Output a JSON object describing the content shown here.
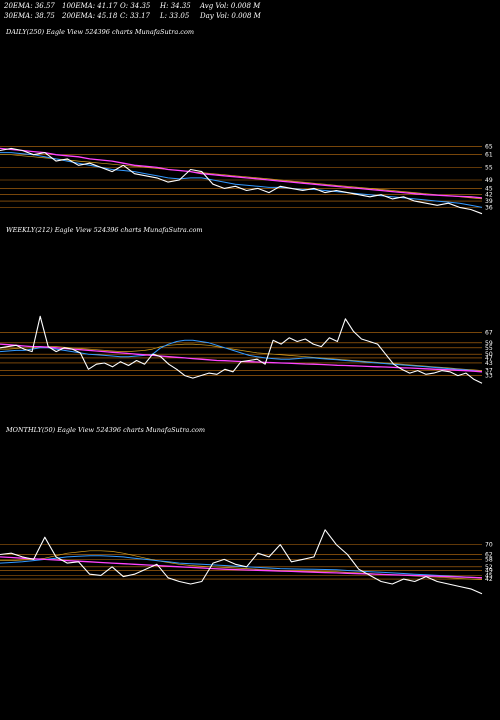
{
  "header": {
    "row1": [
      "20EMA: 36.57",
      "100EMA: 41.17",
      "O: 34.35",
      "H: 34.35",
      "Avg Vol: 0.008 M"
    ],
    "row2": [
      "30EMA: 38.75",
      "200EMA: 45.18",
      "C: 33.17",
      "L: 33.05",
      "Day Vol: 0.008 M"
    ]
  },
  "colors": {
    "background": "#000000",
    "price": "#ffffff",
    "ema_pink": "#ff44ff",
    "ema_blue": "#3399ff",
    "ema_gold": "#d4a020",
    "grid": "#c07010"
  },
  "chart_data": [
    {
      "type": "line",
      "title": "DAILY(250) Eagle  View  524396  charts MunafaSutra.com",
      "yticks": [
        65,
        61,
        55,
        49,
        45,
        42,
        39,
        36
      ],
      "ylim": [
        30,
        68
      ],
      "series": [
        {
          "key": "price",
          "values": [
            63,
            64,
            63,
            61,
            62,
            58,
            59,
            56,
            57,
            55,
            53,
            56,
            52,
            51,
            50,
            48,
            49,
            54,
            53,
            47,
            45,
            46,
            44,
            45,
            43,
            46,
            45,
            44,
            45,
            43,
            44,
            43,
            42,
            41,
            42,
            40,
            41,
            39,
            38,
            37,
            38,
            36,
            35,
            33
          ]
        },
        {
          "key": "ema_pink",
          "values": [
            64,
            63.5,
            63,
            62.5,
            62,
            61,
            60.5,
            60,
            59,
            58.5,
            58,
            57,
            56,
            55.5,
            55,
            54,
            53.5,
            53,
            52,
            51.5,
            51,
            50.5,
            50,
            49.5,
            49,
            48.5,
            48,
            47.5,
            47,
            46.5,
            46,
            45.5,
            45,
            44.5,
            44,
            43.5,
            43,
            42.5,
            42,
            41.8,
            41.5,
            41.2,
            41,
            40.5
          ]
        },
        {
          "key": "ema_blue",
          "values": [
            62,
            62,
            61.5,
            61,
            60,
            59,
            58,
            57,
            56,
            55,
            54,
            53.5,
            53,
            52,
            51,
            50,
            49.5,
            50,
            50,
            49,
            48,
            47,
            46.5,
            46,
            45.5,
            45.5,
            45,
            44.5,
            44.5,
            44,
            43.5,
            43,
            42.5,
            42,
            41.5,
            41,
            40.5,
            40,
            39.5,
            39,
            38.5,
            38,
            37,
            36
          ]
        },
        {
          "key": "ema_gold",
          "values": [
            61,
            61,
            60.5,
            60,
            59.5,
            59,
            58.5,
            58,
            57.5,
            57,
            56.5,
            56,
            55.5,
            55,
            54.5,
            54,
            53.5,
            53,
            52.5,
            52,
            51.5,
            51,
            50.5,
            50,
            49.5,
            49,
            48.5,
            48,
            47.5,
            47,
            46.5,
            46,
            45.5,
            45,
            44.5,
            44,
            43.5,
            43,
            42.5,
            42,
            41.5,
            41,
            40.5,
            40
          ]
        }
      ]
    },
    {
      "type": "line",
      "title": "WEEKLY(212) Eagle  View  524396  charts MunafaSutra.com",
      "yticks": [
        67,
        59,
        55,
        50,
        47,
        43,
        37,
        33
      ],
      "ylim": [
        20,
        85
      ],
      "series": [
        {
          "key": "price",
          "values": [
            55,
            56,
            57,
            54,
            52,
            80,
            56,
            52,
            55,
            54,
            51,
            38,
            42,
            43,
            40,
            44,
            41,
            45,
            42,
            50,
            48,
            42,
            38,
            33,
            31,
            33,
            35,
            34,
            38,
            36,
            44,
            45,
            46,
            42,
            61,
            58,
            63,
            60,
            62,
            58,
            56,
            63,
            60,
            78,
            68,
            62,
            60,
            58,
            50,
            42,
            38,
            35,
            37,
            34,
            35,
            37,
            36,
            33,
            35,
            30,
            27
          ]
        },
        {
          "key": "ema_pink",
          "values": [
            58,
            57.5,
            57,
            56.5,
            56,
            56,
            55.5,
            55,
            54.5,
            54,
            53.5,
            53,
            52.5,
            52,
            51.5,
            51,
            50.5,
            50,
            49.5,
            49,
            48.5,
            48,
            47.5,
            47,
            46.5,
            46,
            45.5,
            45,
            44.8,
            44.5,
            44.2,
            44,
            43.8,
            43.5,
            43.2,
            43,
            42.8,
            42.5,
            42.2,
            42,
            41.8,
            41.5,
            41.2,
            41,
            40.8,
            40.5,
            40.2,
            40,
            39.8,
            39.5,
            39.2,
            39,
            38.7,
            38.4,
            38.1,
            37.8,
            37.5,
            37.2,
            36.9,
            36.5,
            36
          ]
        },
        {
          "key": "ema_blue",
          "values": [
            52,
            52.5,
            53,
            53,
            54,
            55,
            55,
            54,
            53,
            52,
            51,
            50,
            49.5,
            49,
            48.5,
            48,
            48,
            48.5,
            49,
            50,
            55,
            58,
            60,
            61,
            61,
            60,
            59,
            57,
            55,
            53,
            51,
            49,
            48,
            47,
            46.5,
            46,
            46,
            46.5,
            47,
            47,
            46.5,
            46,
            45.5,
            45,
            44.5,
            44,
            43.5,
            43,
            42.5,
            42,
            41.5,
            41,
            40.5,
            40,
            39.5,
            39,
            38.5,
            38,
            37.5,
            37,
            36
          ]
        },
        {
          "key": "ema_gold",
          "values": [
            54,
            54,
            54.5,
            55,
            55,
            55.5,
            56,
            56,
            55.5,
            55,
            54.5,
            54,
            53.5,
            53,
            52.5,
            52,
            52,
            52.5,
            53,
            54,
            56,
            57,
            57.5,
            58,
            58,
            57.5,
            57,
            56,
            55,
            54,
            53,
            52,
            51,
            50.5,
            50,
            49.5,
            49,
            48.5,
            48,
            47.5,
            47,
            46.5,
            46,
            45.5,
            45,
            44.5,
            44,
            43.5,
            43,
            42.5,
            42,
            41.5,
            41,
            40.5,
            40,
            39.5,
            39,
            38.5,
            38,
            37.5,
            37
          ]
        }
      ]
    },
    {
      "type": "line",
      "title": "MONTHLY(50) Eagle  View  524396  charts MunafaSutra.com",
      "yticks": [
        70,
        62,
        58,
        52,
        49,
        45,
        42
      ],
      "ylim": [
        25,
        90
      ],
      "series": [
        {
          "key": "price",
          "values": [
            62,
            63,
            60,
            58,
            76,
            60,
            55,
            56,
            46,
            45,
            52,
            44,
            46,
            50,
            54,
            43,
            40,
            38,
            40,
            55,
            58,
            54,
            52,
            63,
            60,
            70,
            56,
            58,
            60,
            82,
            70,
            62,
            50,
            45,
            40,
            38,
            42,
            40,
            44,
            40,
            38,
            36,
            34,
            30
          ]
        },
        {
          "key": "ema_pink",
          "values": [
            60,
            59.5,
            59,
            58.5,
            58,
            57.5,
            57,
            56.5,
            56,
            55.5,
            55,
            54.5,
            54,
            53.5,
            53,
            52.5,
            52,
            51.5,
            51,
            50.5,
            50,
            49.7,
            49.4,
            49.1,
            48.8,
            48.5,
            48.2,
            47.9,
            47.6,
            47.3,
            47,
            46.7,
            46.4,
            46.1,
            45.8,
            45.5,
            45.2,
            44.9,
            44.6,
            44.3,
            44,
            43.7,
            43.4,
            43
          ]
        },
        {
          "key": "ema_blue",
          "values": [
            55,
            55.5,
            56,
            57,
            58,
            59,
            60,
            60.5,
            61,
            61,
            60.5,
            60,
            59,
            58,
            57,
            56,
            55,
            54.5,
            54,
            53.5,
            53,
            52.5,
            52,
            51.5,
            51,
            50.5,
            50.3,
            50.1,
            50,
            49.8,
            49.5,
            49,
            48.5,
            48,
            47.5,
            47,
            46.5,
            46,
            45.5,
            45,
            44.5,
            44,
            43.5,
            43
          ]
        },
        {
          "key": "ema_gold",
          "values": [
            57,
            57,
            57.5,
            58,
            59,
            61,
            63,
            64,
            65,
            65,
            64.5,
            63,
            61,
            59,
            57,
            55.5,
            54,
            53,
            52.5,
            52,
            51.5,
            51,
            50.5,
            50,
            49.5,
            49,
            48.8,
            48.6,
            48.4,
            48.2,
            48,
            47.5,
            47,
            46.5,
            46,
            45.5,
            45,
            44.5,
            44,
            43.5,
            43,
            42.5,
            42,
            41.5
          ]
        }
      ]
    }
  ]
}
